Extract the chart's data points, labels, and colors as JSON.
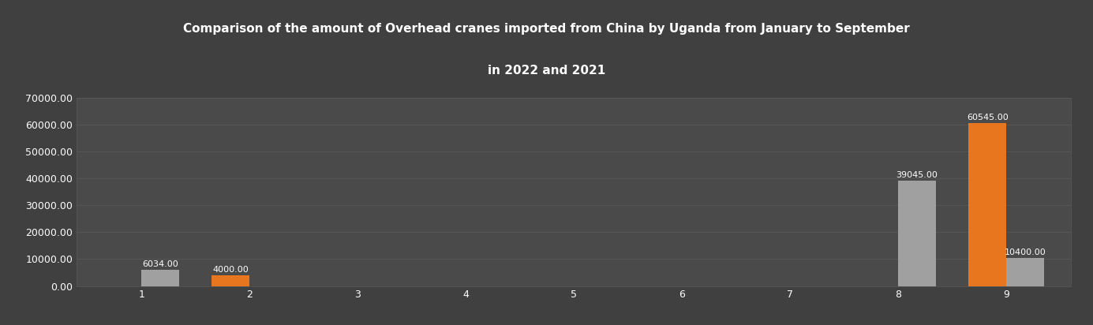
{
  "title_line1": "Comparison of the amount of Overhead cranes imported from China by Uganda from January to September",
  "title_line2": "in 2022 and 2021",
  "months": [
    1,
    2,
    3,
    4,
    5,
    6,
    7,
    8,
    9
  ],
  "data_2021": [
    0,
    4000,
    0,
    0,
    0,
    0,
    0,
    0,
    60545
  ],
  "data_2022": [
    6034,
    0,
    0,
    0,
    0,
    0,
    0,
    39045,
    10400
  ],
  "color_2021": "#E8761E",
  "color_2022": "#A0A0A0",
  "background_color": "#404040",
  "plot_bg_color": "#4a4a4a",
  "text_color": "#ffffff",
  "grid_color": "#5a5a5a",
  "ylim": [
    0,
    70000
  ],
  "yticks": [
    0,
    10000,
    20000,
    30000,
    40000,
    50000,
    60000,
    70000
  ],
  "bar_width": 0.35,
  "annotations_2021": [
    {
      "month": 2,
      "value": 4000,
      "label": "4000.00"
    },
    {
      "month": 9,
      "value": 60545,
      "label": "60545.00"
    }
  ],
  "annotations_2022": [
    {
      "month": 1,
      "value": 6034,
      "label": "6034.00"
    },
    {
      "month": 8,
      "value": 39045,
      "label": "39045.00"
    },
    {
      "month": 9,
      "value": 10400,
      "label": "10400.00"
    }
  ]
}
